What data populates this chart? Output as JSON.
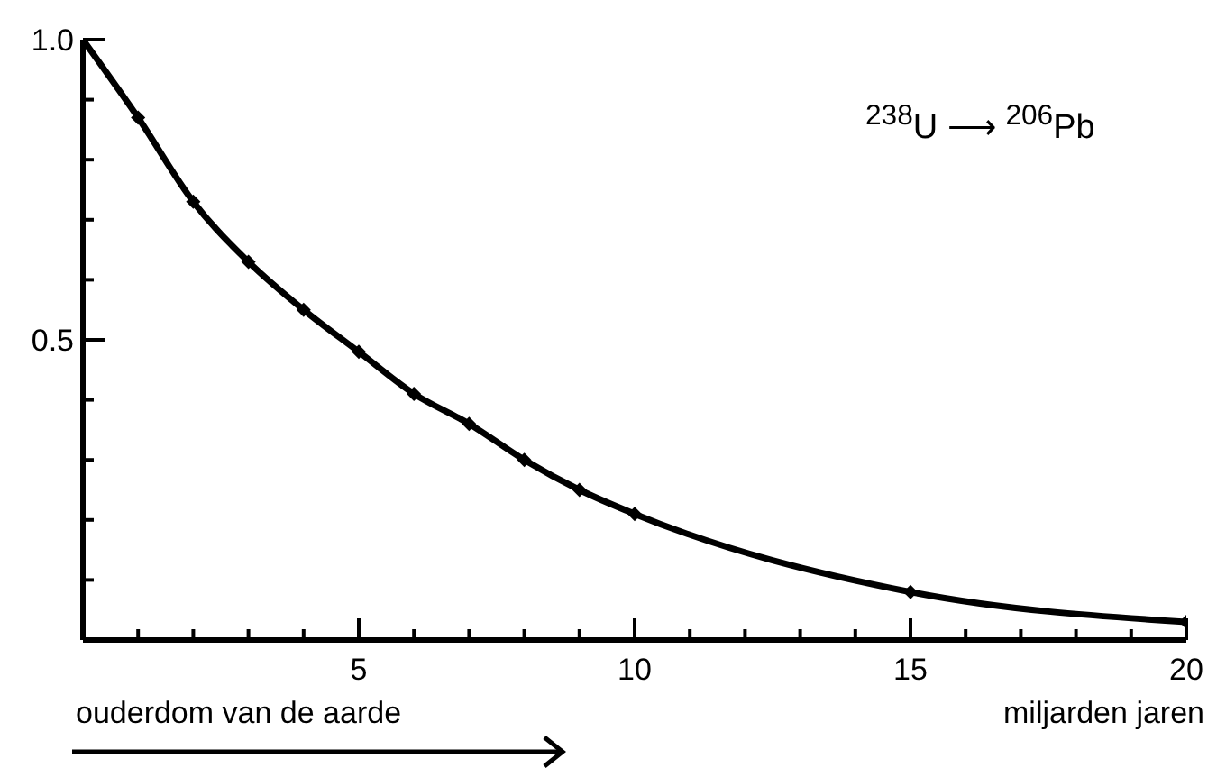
{
  "chart_data": {
    "type": "line",
    "xlabel": "miljarden jaren",
    "x": [
      0,
      1,
      2,
      3,
      4,
      5,
      6,
      7,
      8,
      9,
      10,
      15,
      20
    ],
    "series": [
      {
        "color": "#000000",
        "values": [
          1.0,
          0.87,
          0.73,
          0.63,
          0.55,
          0.48,
          0.41,
          0.36,
          0.3,
          0.25,
          0.21,
          0.08,
          0.03
        ]
      }
    ],
    "xlim": [
      0,
      20
    ],
    "xticks": [
      {
        "value": 1,
        "label": null
      },
      {
        "value": 2,
        "label": null
      },
      {
        "value": 3,
        "label": null
      },
      {
        "value": 4,
        "label": null
      },
      5,
      {
        "value": 6,
        "label": null
      },
      {
        "value": 7,
        "label": null
      },
      {
        "value": 8,
        "label": null
      },
      {
        "value": 9,
        "label": null
      },
      10,
      {
        "value": 11,
        "label": null
      },
      {
        "value": 12,
        "label": null
      },
      {
        "value": 13,
        "label": null
      },
      {
        "value": 14,
        "label": null
      },
      15,
      {
        "value": 16,
        "label": null
      },
      {
        "value": 17,
        "label": null
      },
      {
        "value": 18,
        "label": null
      },
      {
        "value": 19,
        "label": null
      },
      20
    ],
    "ylim": [
      0,
      1.0
    ],
    "yticks": [
      {
        "value": 0.1,
        "label": null
      },
      {
        "value": 0.2,
        "label": null
      },
      {
        "value": 0.3,
        "label": null
      },
      {
        "value": 0.4,
        "label": null
      },
      {
        "value": 0.5,
        "label": "0.5"
      },
      {
        "value": 0.6,
        "label": null
      },
      {
        "value": 0.7,
        "label": null
      },
      {
        "value": 0.8,
        "label": null
      },
      {
        "value": 0.9,
        "label": null
      },
      {
        "value": 1.0,
        "label": "1.0"
      }
    ],
    "marker": "diamond",
    "line_style": "solid",
    "annotations": [
      "$^{238}$U ⟶ $^{206}$Pb",
      "ouderdom van de aarde"
    ]
  }
}
